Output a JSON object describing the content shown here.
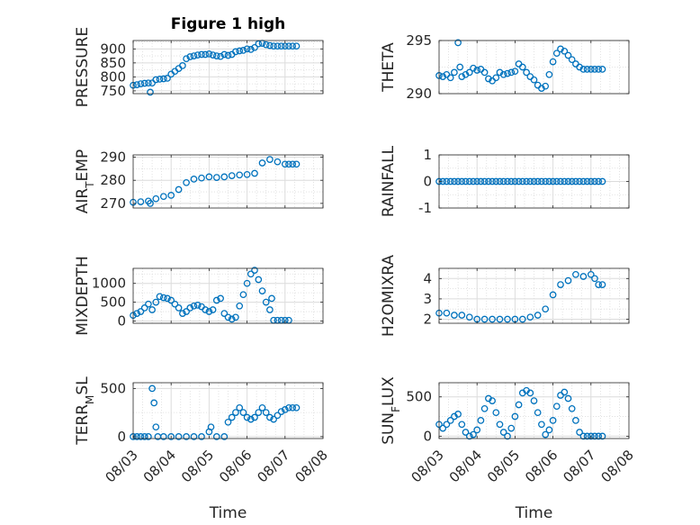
{
  "colors": {
    "marker": "#0072BD",
    "grid": "#dcdcdc",
    "axis": "#262626"
  },
  "figure_title": "Figure 1 high",
  "x_tick_labels": [
    "08/03",
    "08/04",
    "08/05",
    "08/06",
    "08/07",
    "08/08"
  ],
  "xlabel": "Time",
  "chart_data": [
    {
      "type": "scatter",
      "title": "Figure 1 high",
      "ylabel": "PRESSURE",
      "xlim": [
        0,
        5
      ],
      "ylim": [
        740,
        930
      ],
      "yticks": [
        750,
        800,
        850,
        900
      ],
      "grid": true,
      "x": [
        0,
        0.1,
        0.2,
        0.3,
        0.4,
        0.45,
        0.5,
        0.6,
        0.7,
        0.8,
        0.9,
        1.0,
        1.1,
        1.2,
        1.3,
        1.4,
        1.5,
        1.6,
        1.7,
        1.8,
        1.9,
        2.0,
        2.1,
        2.2,
        2.3,
        2.4,
        2.5,
        2.6,
        2.7,
        2.8,
        2.9,
        3.0,
        3.1,
        3.2,
        3.3,
        3.4,
        3.5,
        3.6,
        3.7,
        3.8,
        3.9,
        4.0,
        4.1,
        4.2,
        4.3
      ],
      "y": [
        770,
        772,
        775,
        777,
        778,
        745,
        778,
        790,
        792,
        793,
        795,
        810,
        820,
        830,
        840,
        865,
        872,
        875,
        878,
        880,
        880,
        882,
        878,
        875,
        873,
        880,
        877,
        880,
        890,
        893,
        895,
        900,
        898,
        905,
        918,
        920,
        915,
        912,
        910,
        910,
        910,
        910,
        910,
        910,
        910
      ]
    },
    {
      "type": "scatter",
      "ylabel": "THETA",
      "xlim": [
        0,
        5
      ],
      "ylim": [
        290,
        295
      ],
      "yticks": [
        290,
        295
      ],
      "grid": true,
      "x": [
        0,
        0.1,
        0.2,
        0.3,
        0.4,
        0.5,
        0.55,
        0.6,
        0.7,
        0.8,
        0.9,
        1.0,
        1.1,
        1.2,
        1.3,
        1.4,
        1.5,
        1.6,
        1.7,
        1.8,
        1.9,
        2.0,
        2.1,
        2.2,
        2.3,
        2.4,
        2.5,
        2.6,
        2.7,
        2.8,
        2.9,
        3.0,
        3.1,
        3.2,
        3.3,
        3.4,
        3.5,
        3.6,
        3.7,
        3.8,
        3.9,
        4.0,
        4.1,
        4.2,
        4.3
      ],
      "y": [
        291.7,
        291.6,
        291.8,
        291.5,
        292.0,
        294.8,
        292.5,
        291.6,
        291.8,
        292.0,
        292.4,
        292.2,
        292.3,
        292.0,
        291.4,
        291.2,
        291.5,
        292.0,
        291.8,
        291.9,
        292.0,
        292.1,
        292.8,
        292.5,
        292.0,
        291.6,
        291.3,
        290.8,
        290.5,
        290.7,
        291.8,
        293.0,
        293.8,
        294.2,
        294.0,
        293.6,
        293.2,
        292.8,
        292.5,
        292.3,
        292.3,
        292.3,
        292.3,
        292.3,
        292.3
      ]
    },
    {
      "type": "scatter",
      "ylabel": "AIR_TEMP",
      "xlim": [
        0,
        5
      ],
      "ylim": [
        268,
        291
      ],
      "yticks": [
        270,
        280,
        290
      ],
      "grid": true,
      "x": [
        0,
        0.2,
        0.4,
        0.45,
        0.6,
        0.8,
        1.0,
        1.2,
        1.4,
        1.6,
        1.8,
        2.0,
        2.2,
        2.4,
        2.6,
        2.8,
        3.0,
        3.2,
        3.4,
        3.6,
        3.8,
        4.0,
        4.1,
        4.2,
        4.3
      ],
      "y": [
        270.5,
        270.7,
        271.0,
        270.0,
        272.0,
        273.0,
        273.5,
        276.0,
        279.0,
        280.5,
        281.0,
        281.5,
        281.2,
        281.5,
        282.0,
        282.3,
        282.5,
        283.0,
        287.5,
        289.0,
        288.0,
        287.0,
        287.0,
        287.0,
        287.0
      ]
    },
    {
      "type": "scatter",
      "ylabel": "RAINFALL",
      "xlim": [
        0,
        5
      ],
      "ylim": [
        -1,
        1
      ],
      "yticks": [
        -1,
        0,
        1
      ],
      "grid": true,
      "x": [
        0,
        0.1,
        0.2,
        0.3,
        0.4,
        0.5,
        0.6,
        0.7,
        0.8,
        0.9,
        1.0,
        1.1,
        1.2,
        1.3,
        1.4,
        1.5,
        1.6,
        1.7,
        1.8,
        1.9,
        2.0,
        2.1,
        2.2,
        2.3,
        2.4,
        2.5,
        2.6,
        2.7,
        2.8,
        2.9,
        3.0,
        3.1,
        3.2,
        3.3,
        3.4,
        3.5,
        3.6,
        3.7,
        3.8,
        3.9,
        4.0,
        4.1,
        4.2,
        4.3
      ],
      "y": [
        0,
        0,
        0,
        0,
        0,
        0,
        0,
        0,
        0,
        0,
        0,
        0,
        0,
        0,
        0,
        0,
        0,
        0,
        0,
        0,
        0,
        0,
        0,
        0,
        0,
        0,
        0,
        0,
        0,
        0,
        0,
        0,
        0,
        0,
        0,
        0,
        0,
        0,
        0,
        0,
        0,
        0,
        0,
        0
      ]
    },
    {
      "type": "scatter",
      "ylabel": "MIXDEPTH",
      "xlim": [
        0,
        5
      ],
      "ylim": [
        -60,
        1400
      ],
      "yticks": [
        0,
        500,
        1000
      ],
      "grid": true,
      "x": [
        0,
        0.1,
        0.2,
        0.3,
        0.4,
        0.5,
        0.6,
        0.7,
        0.8,
        0.9,
        1.0,
        1.1,
        1.2,
        1.3,
        1.4,
        1.5,
        1.6,
        1.7,
        1.8,
        1.9,
        2.0,
        2.1,
        2.2,
        2.3,
        2.4,
        2.5,
        2.6,
        2.7,
        2.8,
        2.9,
        3.0,
        3.1,
        3.2,
        3.3,
        3.4,
        3.5,
        3.6,
        3.65,
        3.7,
        3.8,
        3.9,
        4.0,
        4.1
      ],
      "y": [
        150,
        200,
        250,
        350,
        450,
        300,
        500,
        650,
        620,
        600,
        550,
        450,
        350,
        200,
        250,
        350,
        400,
        420,
        380,
        300,
        250,
        300,
        550,
        600,
        200,
        100,
        50,
        100,
        400,
        700,
        1000,
        1250,
        1350,
        1100,
        800,
        500,
        300,
        600,
        20,
        20,
        20,
        20,
        20
      ]
    },
    {
      "type": "scatter",
      "ylabel": "H2OMIXRA",
      "xlim": [
        0,
        5
      ],
      "ylim": [
        1.8,
        4.5
      ],
      "yticks": [
        2,
        3,
        4
      ],
      "grid": true,
      "x": [
        0,
        0.2,
        0.4,
        0.6,
        0.8,
        1.0,
        1.2,
        1.4,
        1.6,
        1.8,
        2.0,
        2.2,
        2.4,
        2.6,
        2.8,
        3.0,
        3.2,
        3.4,
        3.6,
        3.8,
        4.0,
        4.1,
        4.2,
        4.3
      ],
      "y": [
        2.3,
        2.3,
        2.2,
        2.2,
        2.1,
        2.0,
        2.0,
        2.0,
        2.0,
        2.0,
        2.0,
        2.0,
        2.1,
        2.2,
        2.5,
        3.2,
        3.7,
        3.9,
        4.2,
        4.1,
        4.2,
        4.0,
        3.7,
        3.7
      ]
    },
    {
      "type": "scatter",
      "ylabel": "TERR_MSL",
      "xlim": [
        0,
        5
      ],
      "ylim": [
        -20,
        560
      ],
      "yticks": [
        0,
        500
      ],
      "grid": true,
      "x": [
        0,
        0.1,
        0.2,
        0.3,
        0.4,
        0.5,
        0.55,
        0.6,
        0.65,
        0.8,
        1.0,
        1.2,
        1.4,
        1.6,
        1.8,
        2.0,
        2.05,
        2.2,
        2.4,
        2.5,
        2.6,
        2.7,
        2.8,
        2.9,
        3.0,
        3.1,
        3.2,
        3.3,
        3.4,
        3.5,
        3.6,
        3.7,
        3.8,
        3.9,
        4.0,
        4.1,
        4.2,
        4.3
      ],
      "y": [
        0,
        0,
        0,
        0,
        0,
        500,
        350,
        100,
        0,
        0,
        0,
        0,
        0,
        0,
        0,
        50,
        100,
        0,
        0,
        150,
        200,
        250,
        300,
        250,
        200,
        180,
        200,
        250,
        300,
        250,
        200,
        180,
        220,
        260,
        280,
        300,
        300,
        300
      ]
    },
    {
      "type": "scatter",
      "ylabel": "SUN_FLUX",
      "xlim": [
        0,
        5
      ],
      "ylim": [
        -30,
        680
      ],
      "yticks": [
        0,
        500
      ],
      "grid": true,
      "x": [
        0,
        0.1,
        0.2,
        0.3,
        0.4,
        0.5,
        0.6,
        0.7,
        0.8,
        0.9,
        1.0,
        1.1,
        1.2,
        1.3,
        1.4,
        1.5,
        1.6,
        1.7,
        1.8,
        1.9,
        2.0,
        2.1,
        2.2,
        2.3,
        2.4,
        2.5,
        2.6,
        2.7,
        2.8,
        2.9,
        3.0,
        3.1,
        3.2,
        3.3,
        3.4,
        3.5,
        3.6,
        3.7,
        3.8,
        3.9,
        4.0,
        4.1,
        4.2,
        4.3
      ],
      "y": [
        150,
        100,
        150,
        200,
        250,
        280,
        150,
        50,
        0,
        20,
        80,
        200,
        350,
        480,
        450,
        300,
        150,
        50,
        0,
        100,
        250,
        400,
        550,
        580,
        550,
        450,
        300,
        150,
        20,
        80,
        200,
        380,
        520,
        560,
        480,
        350,
        200,
        50,
        0,
        0,
        0,
        0,
        0,
        0
      ]
    }
  ]
}
